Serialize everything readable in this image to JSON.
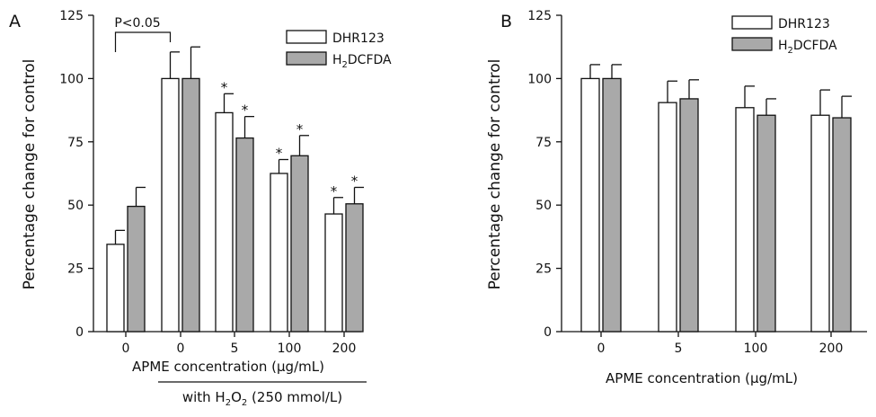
{
  "chart_data": [
    {
      "panel_label": "A",
      "type": "bar",
      "categories": [
        "0",
        "0",
        "5",
        "100",
        "200"
      ],
      "series": [
        {
          "name": "DHR123",
          "name_main": "DHR123",
          "name_sub": "",
          "name_tail": "",
          "fill": "#ffffff",
          "values": [
            34.5,
            100,
            86.5,
            62.5,
            46.5
          ],
          "errors": [
            5.5,
            10.5,
            7.5,
            5.5,
            6.5
          ],
          "marks": [
            "",
            "",
            "*",
            "*",
            "*"
          ]
        },
        {
          "name": "H2DCFDA",
          "name_main": "H",
          "name_sub": "2",
          "name_tail": "DCFDA",
          "fill": "#a9a9a9",
          "values": [
            49.5,
            100,
            76.5,
            69.5,
            50.5
          ],
          "errors": [
            7.5,
            12.5,
            8.5,
            8.0,
            6.5
          ],
          "marks": [
            "",
            "",
            "*",
            "*",
            "*"
          ]
        }
      ],
      "ylabel": "Percentage change for control",
      "xlabel": "APME concentration (μg/mL)",
      "ylim": [
        0,
        125
      ],
      "yticks": [
        "0",
        "25",
        "50",
        "75",
        "100",
        "125"
      ],
      "significance": {
        "label": "P<0.05",
        "from_index": 0,
        "to_index": 1
      },
      "group_note": {
        "text_before": "with H",
        "sub1": "2",
        "mid": "O",
        "sub2": "2",
        "text_after": " (250 mmol/L)",
        "from_index": 1,
        "to_index": 4
      },
      "legend_position": "top-right",
      "grid": false
    },
    {
      "panel_label": "B",
      "type": "bar",
      "categories": [
        "0",
        "5",
        "100",
        "200"
      ],
      "series": [
        {
          "name": "DHR123",
          "name_main": "DHR123",
          "name_sub": "",
          "name_tail": "",
          "fill": "#ffffff",
          "values": [
            100,
            90.5,
            88.5,
            85.5
          ],
          "errors": [
            5.5,
            8.5,
            8.5,
            10.0
          ]
        },
        {
          "name": "H2DCFDA",
          "name_main": "H",
          "name_sub": "2",
          "name_tail": "DCFDA",
          "fill": "#a9a9a9",
          "values": [
            100,
            92.0,
            85.5,
            84.5
          ],
          "errors": [
            5.5,
            7.5,
            6.5,
            8.5
          ]
        }
      ],
      "ylabel": "Percentage change for control",
      "xlabel": "APME concentration (μg/mL)",
      "ylim": [
        0,
        125
      ],
      "yticks": [
        "0",
        "25",
        "50",
        "75",
        "100",
        "125"
      ],
      "legend_position": "top-right",
      "grid": false
    }
  ]
}
